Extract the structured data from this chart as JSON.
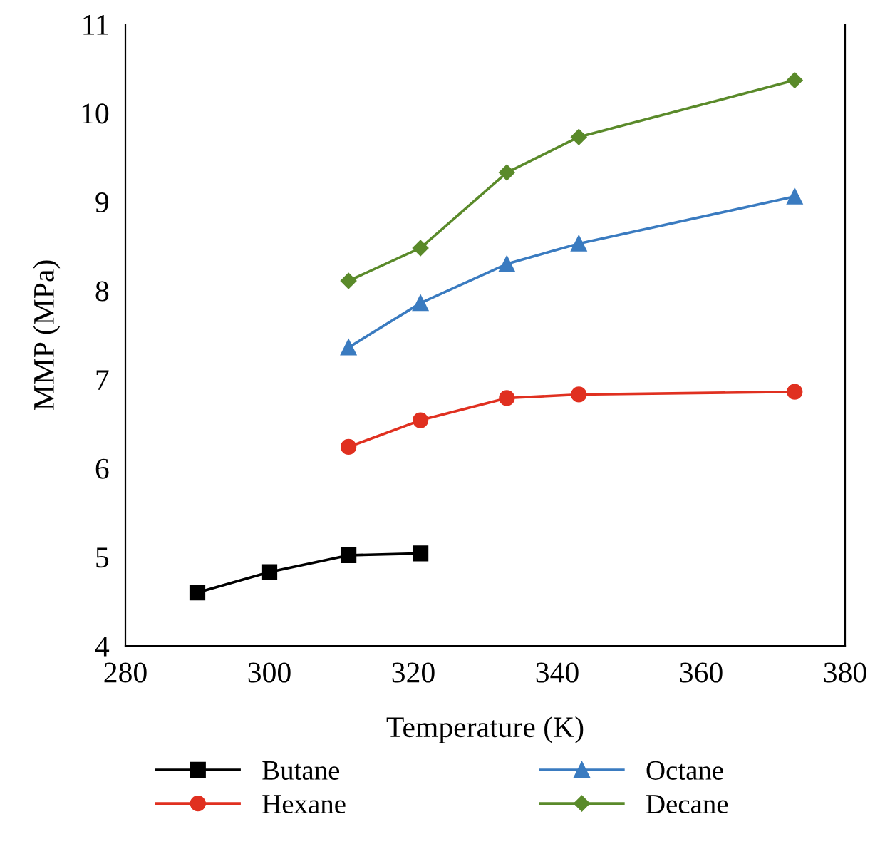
{
  "chart_data": {
    "type": "line",
    "xlabel": "Temperature (K)",
    "ylabel": "MMP (MPa)",
    "xlim": [
      280,
      380
    ],
    "xticks": [
      280,
      300,
      320,
      340,
      360,
      380
    ],
    "ylim": [
      4,
      11
    ],
    "yticks": [
      4,
      5,
      6,
      7,
      8,
      9,
      10,
      11
    ],
    "grid": false,
    "legend": "bottom",
    "line_style": "solid",
    "series": [
      {
        "name": "Butane",
        "color": "#000000",
        "marker": "square",
        "x": [
          290,
          300,
          311,
          321
        ],
        "values": [
          4.6,
          4.83,
          5.02,
          5.04
        ]
      },
      {
        "name": "Hexane",
        "color": "#e03020",
        "marker": "circle",
        "x": [
          311,
          321,
          333,
          343,
          373
        ],
        "values": [
          6.24,
          6.54,
          6.79,
          6.83,
          6.86
        ]
      },
      {
        "name": "Octane",
        "color": "#3a7bc0",
        "marker": "triangle",
        "x": [
          311,
          321,
          333,
          343,
          373
        ],
        "values": [
          7.36,
          7.86,
          8.3,
          8.53,
          9.06
        ]
      },
      {
        "name": "Decane",
        "color": "#5a8a2a",
        "marker": "diamond",
        "x": [
          311,
          321,
          333,
          343,
          373
        ],
        "values": [
          8.11,
          8.48,
          9.33,
          9.73,
          10.37
        ]
      }
    ]
  }
}
